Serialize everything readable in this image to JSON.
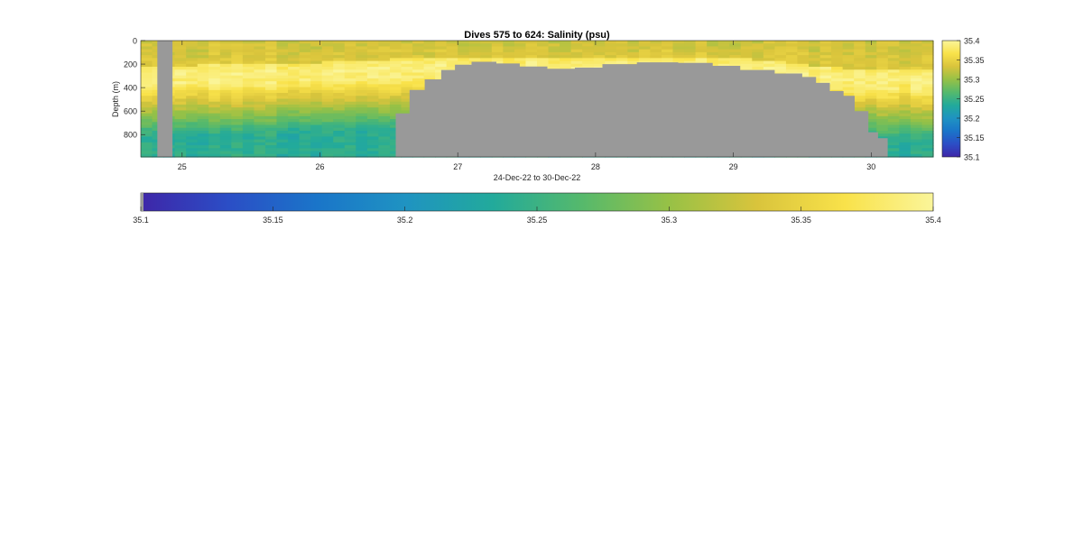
{
  "chart_data": {
    "type": "heatmap",
    "title": "Dives 575 to 624: Salinity (psu)",
    "xlabel": "24-Dec-22 to 30-Dec-22",
    "ylabel": "Depth (m)",
    "x_axis": {
      "unit": "day of Dec-2022",
      "lim": [
        24.7,
        30.45
      ],
      "ticks": [
        25,
        26,
        27,
        28,
        29,
        30
      ],
      "tick_labels": [
        "25",
        "26",
        "27",
        "28",
        "29",
        "30"
      ]
    },
    "y_axis": {
      "lim": [
        0,
        990
      ],
      "reversed": true,
      "ticks": [
        0,
        200,
        400,
        600,
        800
      ],
      "tick_labels": [
        "0",
        "200",
        "400",
        "600",
        "800"
      ]
    },
    "color_axis": {
      "colormap": "parula-like",
      "clim": [
        35.1,
        35.4
      ],
      "ticks": [
        35.1,
        35.15,
        35.2,
        35.25,
        35.3,
        35.35,
        35.4
      ],
      "tick_labels": [
        "35.1",
        "35.15",
        "35.2",
        "35.25",
        "35.3",
        "35.35",
        "35.4"
      ],
      "colors": [
        "#3e26a8",
        "#2b4ec6",
        "#1a75c9",
        "#1f93c2",
        "#22aa9b",
        "#55b96c",
        "#97c146",
        "#d9c43c",
        "#f9e24a",
        "#faf59a"
      ]
    },
    "no_data_color": "#999999",
    "no_data_segments": [
      {
        "day_start": 24.82,
        "day_end": 24.93,
        "from_depth": 0
      }
    ],
    "seafloor_profile": {
      "days": [
        26.55,
        26.65,
        26.76,
        26.88,
        26.98,
        27.1,
        27.28,
        27.45,
        27.65,
        27.85,
        28.05,
        28.3,
        28.6,
        28.85,
        29.05,
        29.3,
        29.5,
        29.6,
        29.7,
        29.8,
        29.88,
        29.98,
        30.05,
        30.12
      ],
      "depths": [
        620,
        420,
        330,
        250,
        205,
        180,
        195,
        220,
        240,
        230,
        200,
        185,
        190,
        215,
        250,
        280,
        310,
        360,
        430,
        470,
        600,
        780,
        830,
        990
      ]
    },
    "section_profile": {
      "description_free": true,
      "surface_salinity": 35.34,
      "halocline_depth": [
        300,
        280,
        260,
        240,
        220,
        320,
        330
      ],
      "halocline_days": [
        24.7,
        25.5,
        26.2,
        26.5,
        29.0,
        29.8,
        30.45
      ],
      "max_salinity": 35.39,
      "deep_salinity": 35.24
    }
  }
}
